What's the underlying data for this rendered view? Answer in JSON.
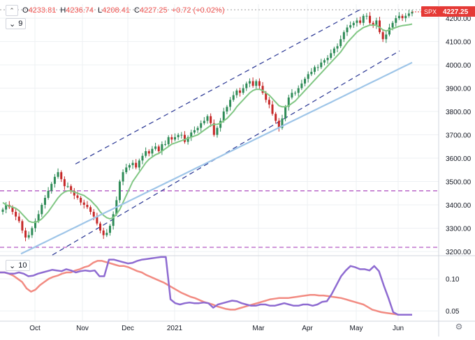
{
  "ohlc": {
    "open_label": "O",
    "open": "4233.81",
    "high_label": "H",
    "high": "4236.74",
    "low_label": "L",
    "low": "4208.41",
    "close_label": "C",
    "close": "4227.25",
    "change": "+0.72 (+0.02%)"
  },
  "ma_legend": {
    "value": "9"
  },
  "indicator_legend": {
    "value": "10"
  },
  "symbol_badge": {
    "ticker": "SPX",
    "price": "4227.25"
  },
  "colors": {
    "up": "#26a69a",
    "down": "#ef5350",
    "candle_up": "#2e8b57",
    "candle_down": "#c62828",
    "ma_short": "#81c784",
    "ma_long": "#9ec5e8",
    "channel": "#283593",
    "support": "#ab47bc",
    "vol_red": "#f28b82",
    "vol_purple": "#8e6bd1",
    "badge": "#e53935",
    "grid": "#eef0f3"
  },
  "chart_data": [
    {
      "type": "candlestick",
      "symbol": "SPX",
      "x_ticks": [
        "Oct",
        "Nov",
        "Dec",
        "2021",
        "Mar",
        "Apr",
        "May",
        "Jun"
      ],
      "y_ticks": [
        "3200.00",
        "3300.00",
        "3400.00",
        "3500.00",
        "3600.00",
        "3700.00",
        "3800.00",
        "3900.00",
        "4000.00",
        "4100.00",
        "4200.00"
      ],
      "ylim": [
        3185,
        4260
      ],
      "last_close": 4227.25,
      "ma_short_label": "9",
      "horizontal_levels": [
        3460,
        3218
      ],
      "top_level": 4236,
      "closes": [
        3380,
        3400,
        3390,
        3370,
        3350,
        3330,
        3290,
        3260,
        3270,
        3300,
        3330,
        3360,
        3400,
        3430,
        3460,
        3490,
        3520,
        3540,
        3510,
        3480,
        3480,
        3460,
        3440,
        3430,
        3410,
        3400,
        3390,
        3370,
        3350,
        3320,
        3290,
        3270,
        3280,
        3310,
        3360,
        3420,
        3500,
        3540,
        3560,
        3570,
        3580,
        3560,
        3590,
        3610,
        3630,
        3620,
        3640,
        3650,
        3630,
        3660,
        3660,
        3690,
        3680,
        3690,
        3700,
        3700,
        3670,
        3690,
        3710,
        3720,
        3730,
        3750,
        3760,
        3780,
        3750,
        3700,
        3730,
        3760,
        3800,
        3820,
        3850,
        3870,
        3890,
        3880,
        3900,
        3920,
        3930,
        3910,
        3930,
        3910,
        3880,
        3850,
        3830,
        3790,
        3760,
        3730,
        3770,
        3820,
        3860,
        3880,
        3880,
        3900,
        3920,
        3940,
        3960,
        3970,
        3990,
        3990,
        4010,
        4020,
        4030,
        4050,
        4070,
        4080,
        4110,
        4140,
        4160,
        4170,
        4180,
        4190,
        4180,
        4210,
        4210,
        4180,
        4170,
        4190,
        4140,
        4110,
        4130,
        4160,
        4180,
        4200,
        4210,
        4200,
        4210,
        4220,
        4227.25
      ],
      "ma_short": [
        3410,
        3400,
        3395,
        3390,
        3385,
        3375,
        3360,
        3345,
        3330,
        3325,
        3325,
        3330,
        3340,
        3355,
        3370,
        3390,
        3410,
        3430,
        3445,
        3455,
        3460,
        3460,
        3455,
        3450,
        3445,
        3440,
        3430,
        3420,
        3405,
        3390,
        3370,
        3355,
        3345,
        3340,
        3345,
        3360,
        3380,
        3410,
        3440,
        3470,
        3500,
        3520,
        3540,
        3560,
        3580,
        3595,
        3605,
        3615,
        3620,
        3630,
        3640,
        3650,
        3660,
        3665,
        3670,
        3675,
        3680,
        3685,
        3690,
        3695,
        3700,
        3710,
        3720,
        3730,
        3740,
        3745,
        3745,
        3750,
        3760,
        3770,
        3785,
        3800,
        3820,
        3835,
        3850,
        3865,
        3880,
        3890,
        3895,
        3895,
        3890,
        3880,
        3870,
        3855,
        3840,
        3825,
        3820,
        3820,
        3825,
        3835,
        3845,
        3860,
        3875,
        3890,
        3905,
        3920,
        3935,
        3950,
        3965,
        3980,
        3995,
        4010,
        4025,
        4040,
        4055,
        4075,
        4095,
        4110,
        4125,
        4140,
        4150,
        4160,
        4165,
        4170,
        4170,
        4170,
        4160,
        4150,
        4145,
        4150,
        4155,
        4160,
        4165,
        4168,
        4170,
        4172,
        4175
      ],
      "ma_long": [
        3190,
        3200,
        3210,
        3220,
        3230,
        3240,
        3250,
        3260,
        3270,
        3280,
        3290,
        3300,
        3310,
        3320,
        3330,
        3340,
        3350,
        3360,
        3370,
        3380,
        3390,
        3400,
        3410,
        3420,
        3430,
        3440,
        3450,
        3460,
        3470,
        3480,
        3490,
        3500,
        3510,
        3520,
        3530,
        3540,
        3550,
        3560,
        3570,
        3580,
        3590,
        3600,
        3610,
        3620,
        3630,
        3640,
        3650,
        3660,
        3670,
        3680,
        3690,
        3700,
        3710,
        3720,
        3730,
        3740,
        3750,
        3760,
        3770,
        3780,
        3790,
        3800,
        3810,
        3820,
        3830,
        3840,
        3850,
        3860,
        3870,
        3880,
        3890,
        3900,
        3910,
        3920,
        3930,
        3940,
        3950,
        3960,
        3970,
        3980,
        3990,
        4000,
        4010
      ]
    },
    {
      "type": "line",
      "panel": "indicator",
      "y_ticks": [
        "0.10",
        "0.05"
      ],
      "ylim": [
        0.035,
        0.135
      ],
      "series": [
        {
          "values": [
            0.11,
            0.11,
            0.108,
            0.105,
            0.1,
            0.095,
            0.085,
            0.08,
            0.083,
            0.09,
            0.095,
            0.1,
            0.103,
            0.105,
            0.108,
            0.11,
            0.11,
            0.113,
            0.115,
            0.118,
            0.12,
            0.125,
            0.128,
            0.128,
            0.126,
            0.124,
            0.122,
            0.12,
            0.12,
            0.118,
            0.115,
            0.112,
            0.11,
            0.106,
            0.103,
            0.1,
            0.097,
            0.094,
            0.09,
            0.086,
            0.082,
            0.078,
            0.075,
            0.072,
            0.07,
            0.067,
            0.064,
            0.062,
            0.06,
            0.057,
            0.055,
            0.053,
            0.052,
            0.052,
            0.054,
            0.056,
            0.058,
            0.06,
            0.062,
            0.064,
            0.066,
            0.068,
            0.069,
            0.07,
            0.07,
            0.07,
            0.071,
            0.072,
            0.073,
            0.074,
            0.075,
            0.075,
            0.074,
            0.074,
            0.073,
            0.072,
            0.071,
            0.07,
            0.068,
            0.066,
            0.064,
            0.062,
            0.06,
            0.056,
            0.052,
            0.05,
            0.048,
            0.047,
            0.046,
            0.045,
            0.044,
            0.044,
            0.044,
            0.044
          ]
        },
        {
          "values": [
            0.11,
            0.11,
            0.108,
            0.108,
            0.11,
            0.108,
            0.104,
            0.105,
            0.108,
            0.11,
            0.112,
            0.114,
            0.113,
            0.112,
            0.115,
            0.113,
            0.11,
            0.112,
            0.113,
            0.112,
            0.113,
            0.104,
            0.104,
            0.13,
            0.13,
            0.128,
            0.126,
            0.124,
            0.125,
            0.128,
            0.13,
            0.131,
            0.132,
            0.133,
            0.134,
            0.134,
            0.068,
            0.062,
            0.06,
            0.062,
            0.063,
            0.062,
            0.062,
            0.063,
            0.062,
            0.055,
            0.06,
            0.062,
            0.064,
            0.066,
            0.065,
            0.062,
            0.06,
            0.058,
            0.058,
            0.06,
            0.06,
            0.058,
            0.058,
            0.06,
            0.062,
            0.06,
            0.058,
            0.058,
            0.06,
            0.06,
            0.058,
            0.06,
            0.064,
            0.065,
            0.076,
            0.09,
            0.104,
            0.113,
            0.12,
            0.118,
            0.115,
            0.115,
            0.113,
            0.12,
            0.112,
            0.09,
            0.07,
            0.048,
            0.044,
            0.044,
            0.044,
            0.044
          ]
        }
      ]
    }
  ]
}
